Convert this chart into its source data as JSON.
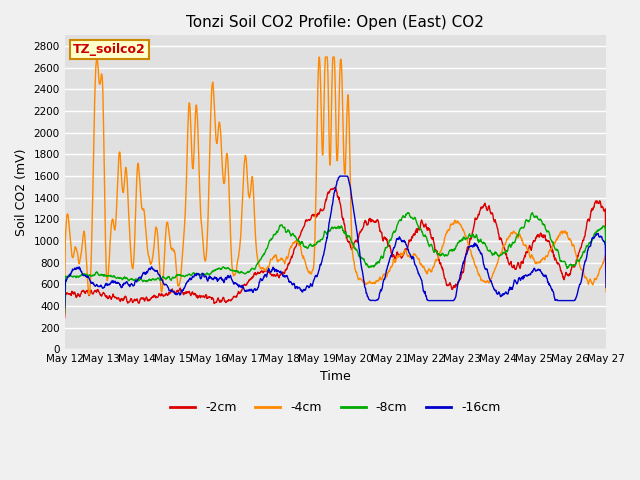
{
  "title": "Tonzi Soil CO2 Profile: Open (East) CO2",
  "ylabel": "Soil CO2 (mV)",
  "xlabel": "Time",
  "ylim": [
    0,
    2900
  ],
  "yticks": [
    0,
    200,
    400,
    600,
    800,
    1000,
    1200,
    1400,
    1600,
    1800,
    2000,
    2200,
    2400,
    2600,
    2800
  ],
  "bg_color": "#e0e0e0",
  "grid_color": "#ffffff",
  "fig_bg_color": "#f0f0f0",
  "label_box_text": "TZ_soilco2",
  "label_box_facecolor": "#ffffcc",
  "label_box_edgecolor": "#cc8800",
  "label_box_textcolor": "#cc0000",
  "line_colors": [
    "#dd0000",
    "#ff8800",
    "#00aa00",
    "#0000cc"
  ],
  "line_lw": 1.0,
  "legend_labels": [
    "-2cm",
    "-4cm",
    "-8cm",
    "-16cm"
  ],
  "x_start_day": 12,
  "x_end_day": 27,
  "x_tick_days": [
    12,
    13,
    14,
    15,
    16,
    17,
    18,
    19,
    20,
    21,
    22,
    23,
    24,
    25,
    26,
    27
  ]
}
